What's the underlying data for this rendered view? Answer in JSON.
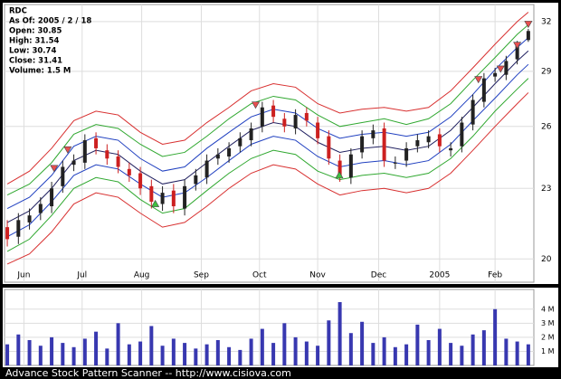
{
  "chart_data": {
    "type": "candlestick",
    "info_lines": [
      "RDC",
      "As Of: 2005 / 2 / 18",
      "Open: 30.85",
      "High: 31.54",
      "Low: 30.74",
      "Close: 31.41",
      "Volume: 1.5 M"
    ],
    "footer": "Advance Stock Pattern Scanner -- http://www.cisiova.com",
    "log_scale": true,
    "grid": true,
    "up_color": "#222222",
    "down_color": "#cc2020",
    "xlim": [
      -7,
      184
    ],
    "xticks": [
      {
        "value": 0,
        "label": "Jun"
      },
      {
        "value": 21,
        "label": "Jul"
      },
      {
        "value": 42.5,
        "label": "Aug"
      },
      {
        "value": 64,
        "label": "Sep"
      },
      {
        "value": 85,
        "label": "Oct"
      },
      {
        "value": 106,
        "label": "Nov"
      },
      {
        "value": 128,
        "label": "Dec"
      },
      {
        "value": 150,
        "label": "2005"
      },
      {
        "value": 170,
        "label": "Feb"
      }
    ],
    "ylim": [
      19.1,
      33.1
    ],
    "yticks": [
      20,
      23,
      26,
      29,
      32
    ],
    "x": [
      -6,
      -2,
      2,
      6,
      10,
      14,
      18,
      22,
      26,
      30,
      34,
      38,
      42,
      46,
      50,
      54,
      58,
      62,
      66,
      70,
      74,
      78,
      82,
      86,
      90,
      94,
      98,
      102,
      106,
      110,
      114,
      118,
      122,
      126,
      130,
      134,
      138,
      142,
      146,
      150,
      154,
      158,
      162,
      166,
      170,
      174,
      178,
      182
    ],
    "open": [
      21.3,
      20.9,
      21.5,
      21.9,
      22.2,
      23.1,
      24.1,
      24.2,
      25.4,
      24.8,
      24.5,
      23.9,
      23.7,
      23.1,
      22.3,
      22.9,
      22.1,
      23.2,
      23.5,
      24.4,
      24.5,
      25.0,
      25.3,
      26.0,
      27.1,
      26.4,
      25.9,
      26.7,
      26.2,
      25.5,
      24.3,
      23.5,
      24.7,
      25.4,
      25.9,
      24.2,
      24.3,
      25.0,
      25.2,
      25.6,
      24.8,
      25.0,
      26.1,
      27.3,
      28.7,
      28.8,
      29.7,
      30.85
    ],
    "high": [
      21.6,
      21.9,
      22.1,
      22.6,
      23.3,
      24.3,
      24.6,
      25.6,
      25.7,
      25.1,
      24.8,
      24.2,
      24.0,
      23.4,
      23.1,
      23.2,
      23.4,
      23.9,
      24.6,
      24.9,
      25.2,
      25.7,
      26.2,
      27.3,
      27.4,
      26.7,
      26.9,
      27.0,
      26.5,
      25.8,
      24.6,
      24.9,
      25.8,
      26.1,
      26.2,
      24.5,
      25.2,
      25.6,
      25.8,
      25.9,
      25.2,
      26.5,
      27.7,
      28.9,
      29.2,
      29.9,
      30.8,
      31.54
    ],
    "low": [
      20.5,
      20.6,
      21.2,
      21.6,
      21.9,
      22.8,
      23.8,
      23.9,
      24.6,
      24.1,
      23.7,
      23.3,
      22.7,
      22.1,
      22.0,
      21.9,
      21.8,
      22.9,
      23.2,
      24.1,
      24.2,
      24.7,
      25.0,
      25.7,
      26.2,
      25.7,
      25.6,
      26.0,
      25.1,
      24.1,
      23.3,
      23.2,
      24.4,
      25.1,
      24.0,
      23.9,
      24.0,
      24.7,
      24.9,
      24.7,
      24.5,
      24.7,
      25.8,
      27.0,
      28.4,
      28.5,
      29.4,
      30.74
    ],
    "close": [
      20.8,
      21.6,
      21.8,
      22.3,
      23.0,
      24.0,
      24.3,
      25.3,
      24.9,
      24.4,
      24.0,
      23.6,
      23.0,
      22.4,
      22.8,
      22.2,
      23.1,
      23.6,
      24.3,
      24.6,
      24.9,
      25.4,
      25.9,
      27.0,
      26.5,
      26.0,
      26.6,
      26.3,
      25.4,
      24.4,
      23.6,
      24.6,
      25.5,
      25.8,
      24.3,
      24.2,
      24.9,
      25.3,
      25.5,
      25.0,
      24.9,
      26.2,
      27.4,
      28.6,
      28.9,
      29.6,
      30.5,
      31.41
    ],
    "bands": {
      "x": [
        -6,
        2,
        10,
        18,
        26,
        34,
        42,
        50,
        58,
        66,
        74,
        82,
        90,
        98,
        106,
        114,
        122,
        130,
        138,
        146,
        154,
        162,
        170,
        178,
        182
      ],
      "series": [
        {
          "color": "#d83030",
          "values": [
            23.2,
            23.8,
            24.9,
            26.3,
            26.8,
            26.6,
            25.7,
            25.1,
            25.3,
            26.2,
            27.0,
            27.9,
            28.3,
            28.1,
            27.2,
            26.7,
            26.9,
            27.0,
            26.8,
            27.0,
            27.9,
            29.2,
            30.6,
            32.0,
            32.6
          ]
        },
        {
          "color": "#30a830",
          "values": [
            22.7,
            23.2,
            24.2,
            25.6,
            26.1,
            25.9,
            25.1,
            24.5,
            24.7,
            25.5,
            26.4,
            27.2,
            27.6,
            27.4,
            26.6,
            26.0,
            26.2,
            26.4,
            26.1,
            26.4,
            27.2,
            28.5,
            29.8,
            31.2,
            31.8
          ]
        },
        {
          "color": "#2040c0",
          "values": [
            22.1,
            22.6,
            23.6,
            25.0,
            25.5,
            25.3,
            24.4,
            23.8,
            24.0,
            24.9,
            25.7,
            26.5,
            26.9,
            26.7,
            25.9,
            25.4,
            25.6,
            25.7,
            25.5,
            25.7,
            26.5,
            27.7,
            29.1,
            30.4,
            31.0
          ]
        },
        {
          "color": "#202060",
          "values": [
            21.5,
            22.0,
            23.0,
            24.3,
            24.8,
            24.6,
            23.8,
            23.2,
            23.4,
            24.2,
            25.0,
            25.8,
            26.2,
            26.0,
            25.2,
            24.7,
            24.9,
            25.0,
            24.8,
            25.0,
            25.8,
            27.0,
            28.3,
            29.6,
            30.2
          ]
        },
        {
          "color": "#2040c0",
          "values": [
            20.9,
            21.4,
            22.4,
            23.6,
            24.1,
            23.9,
            23.2,
            22.6,
            22.8,
            23.5,
            24.3,
            25.1,
            25.5,
            25.3,
            24.5,
            24.0,
            24.2,
            24.3,
            24.1,
            24.3,
            25.1,
            26.3,
            27.5,
            28.8,
            29.4
          ]
        },
        {
          "color": "#30a830",
          "values": [
            20.3,
            20.8,
            21.8,
            23.0,
            23.5,
            23.3,
            22.5,
            21.9,
            22.1,
            22.9,
            23.7,
            24.4,
            24.8,
            24.6,
            23.8,
            23.4,
            23.6,
            23.7,
            23.5,
            23.7,
            24.4,
            25.5,
            26.8,
            28.0,
            28.6
          ]
        },
        {
          "color": "#d83030",
          "values": [
            19.8,
            20.2,
            21.1,
            22.3,
            22.8,
            22.6,
            21.9,
            21.3,
            21.5,
            22.2,
            23.0,
            23.7,
            24.1,
            23.9,
            23.2,
            22.7,
            22.9,
            23.0,
            22.8,
            23.0,
            23.7,
            24.8,
            26.0,
            27.2,
            27.8
          ]
        }
      ]
    },
    "markers": [
      {
        "shape": "down",
        "color": "#e85050",
        "x": [
          10.9,
          15.8,
          83.6,
          164,
          172,
          178,
          182
        ],
        "values": [
          23.9,
          24.8,
          27.1,
          28.5,
          29.1,
          30.5,
          31.8
        ]
      },
      {
        "shape": "up",
        "color": "#40c040",
        "x": [
          47.4,
          113.8
        ],
        "values": [
          22.3,
          23.6
        ]
      }
    ],
    "volume": {
      "color": "#3838b0",
      "ylim": [
        0,
        5.4
      ],
      "yticks": [
        {
          "value": 1,
          "label": "1 M"
        },
        {
          "value": 2,
          "label": "2 M"
        },
        {
          "value": 3,
          "label": "3 M"
        },
        {
          "value": 4,
          "label": "4 M"
        }
      ],
      "values": [
        1.5,
        2.2,
        1.8,
        1.4,
        2.0,
        1.6,
        1.3,
        1.9,
        2.4,
        1.2,
        3.0,
        1.5,
        1.7,
        2.8,
        1.4,
        1.9,
        1.6,
        1.2,
        1.5,
        1.8,
        1.3,
        1.1,
        1.9,
        2.6,
        1.6,
        3.0,
        2.0,
        1.7,
        1.4,
        3.2,
        4.5,
        2.3,
        3.1,
        1.6,
        2.0,
        1.3,
        1.5,
        2.9,
        1.8,
        2.6,
        1.6,
        1.4,
        2.2,
        2.5,
        4.0,
        1.9,
        1.7,
        1.5
      ]
    }
  }
}
